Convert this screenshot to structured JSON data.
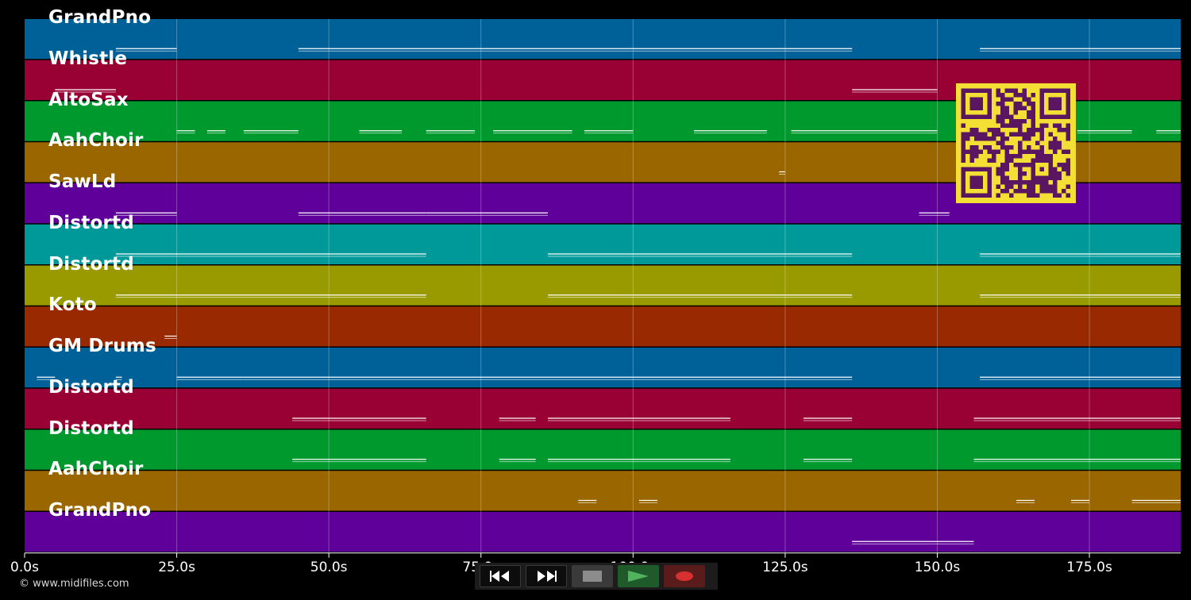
{
  "window": {
    "background": "#000000"
  },
  "timeline": {
    "duration_s": 190,
    "tick_labels": [
      "0.0s",
      "25.0s",
      "50.0s",
      "75.0s",
      "100.0s",
      "125.0s",
      "150.0s",
      "175.0s"
    ],
    "tick_values_s": [
      0,
      25,
      50,
      75,
      100,
      125,
      150,
      175
    ]
  },
  "tracks": [
    {
      "name": "GrandPno",
      "color": "#006199"
    },
    {
      "name": "Whistle",
      "color": "#990033"
    },
    {
      "name": "AltoSax",
      "color": "#00992e"
    },
    {
      "name": "AahChoir",
      "color": "#996600"
    },
    {
      "name": "SawLd",
      "color": "#5e0099"
    },
    {
      "name": "Distortd",
      "color": "#009999"
    },
    {
      "name": "Distortd",
      "color": "#999900"
    },
    {
      "name": "Koto",
      "color": "#992900"
    },
    {
      "name": "GM Drums",
      "color": "#006199"
    },
    {
      "name": "Distortd",
      "color": "#990033"
    },
    {
      "name": "Distortd",
      "color": "#00992e"
    },
    {
      "name": "AahChoir",
      "color": "#996600"
    },
    {
      "name": "GrandPno",
      "color": "#5e0099"
    }
  ],
  "note_segments": [
    [
      [
        15,
        25
      ],
      [
        45,
        136
      ],
      [
        157,
        190
      ]
    ],
    [
      [
        5,
        15
      ],
      [
        136,
        150
      ]
    ],
    [
      [
        25,
        28
      ],
      [
        30,
        33
      ],
      [
        36,
        45
      ],
      [
        55,
        62
      ],
      [
        66,
        74
      ],
      [
        77,
        90
      ],
      [
        92,
        100
      ],
      [
        110,
        122
      ],
      [
        126,
        150
      ],
      [
        173,
        182
      ],
      [
        186,
        190
      ]
    ],
    [
      [
        124,
        125
      ]
    ],
    [
      [
        15,
        25
      ],
      [
        45,
        66
      ],
      [
        66,
        86
      ],
      [
        147,
        152
      ]
    ],
    [
      [
        15,
        66
      ],
      [
        86,
        136
      ],
      [
        157,
        190
      ]
    ],
    [
      [
        15,
        66
      ],
      [
        86,
        136
      ],
      [
        157,
        190
      ]
    ],
    [
      [
        23,
        25
      ]
    ],
    [
      [
        2,
        5
      ],
      [
        15,
        16
      ],
      [
        25,
        36
      ],
      [
        36,
        136
      ],
      [
        157,
        190
      ]
    ],
    [
      [
        44,
        66
      ],
      [
        78,
        84
      ],
      [
        86,
        116
      ],
      [
        128,
        136
      ],
      [
        156,
        190
      ]
    ],
    [
      [
        44,
        66
      ],
      [
        78,
        84
      ],
      [
        86,
        116
      ],
      [
        128,
        136
      ],
      [
        156,
        190
      ]
    ],
    [
      [
        91,
        94
      ],
      [
        101,
        104
      ],
      [
        163,
        166
      ],
      [
        172,
        175
      ],
      [
        182,
        190
      ]
    ],
    [
      [
        136,
        156
      ]
    ]
  ],
  "controls": {
    "rewind_icon": "rewind-icon",
    "fast_forward_icon": "fast-forward-icon",
    "stop_icon": "stop-icon",
    "play_icon": "play-icon",
    "record_icon": "record-icon",
    "play_color": "#52b35e",
    "record_color": "#d63030",
    "stop_color": "#8c8c8c"
  },
  "qr_code": {
    "color": "#5a1660",
    "background": "#f4e035"
  },
  "credit": "© www.midifiles.com"
}
